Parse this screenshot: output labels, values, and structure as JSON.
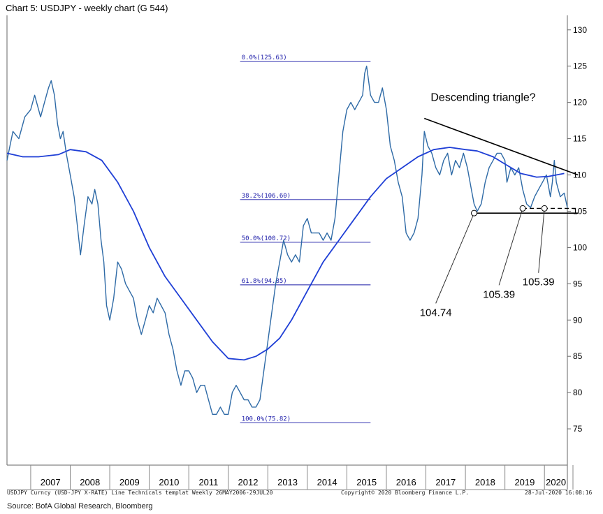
{
  "header": {
    "title": "Chart 5: USDJPY - weekly chart (G 544)"
  },
  "footer": {
    "left": "USDJPY Curncy (USD-JPY X-RATE) Line Technicals templat  Weekly 26MAY2006-29JUL20",
    "center": "Copyright© 2020 Bloomberg Finance L.P.",
    "right": "28-Jul-2020 16:08:16"
  },
  "source": "Source: BofA Global Research, Bloomberg",
  "chart_data": {
    "type": "line",
    "title": "Chart 5: USDJPY - weekly chart (G 544)",
    "x_range": [
      2006.4,
      2020.58
    ],
    "ylim": [
      70,
      132
    ],
    "y_ticks": [
      75,
      80,
      85,
      90,
      95,
      100,
      105,
      110,
      115,
      120,
      125,
      130
    ],
    "x_tick_labels": [
      "2007",
      "2008",
      "2009",
      "2010",
      "2011",
      "2012",
      "2013",
      "2014",
      "2015",
      "2016",
      "2017",
      "2018",
      "2019",
      "2020"
    ],
    "colors": {
      "price": "#2e6aa6",
      "moving_average": "#1f3fd6",
      "fib": "#1a1aa8",
      "annotation": "#000000"
    },
    "series": [
      {
        "kind": "price",
        "x": [
          2006.4,
          2006.55,
          2006.7,
          2006.85,
          2007.0,
          2007.1,
          2007.25,
          2007.35,
          2007.45,
          2007.52,
          2007.6,
          2007.68,
          2007.75,
          2007.82,
          2007.9,
          2008.0,
          2008.1,
          2008.18,
          2008.26,
          2008.35,
          2008.45,
          2008.55,
          2008.62,
          2008.7,
          2008.78,
          2008.85,
          2008.92,
          2009.0,
          2009.1,
          2009.2,
          2009.3,
          2009.4,
          2009.5,
          2009.6,
          2009.7,
          2009.8,
          2009.9,
          2010.0,
          2010.1,
          2010.2,
          2010.3,
          2010.4,
          2010.5,
          2010.6,
          2010.7,
          2010.8,
          2010.9,
          2011.0,
          2011.1,
          2011.2,
          2011.3,
          2011.4,
          2011.5,
          2011.6,
          2011.7,
          2011.8,
          2011.9,
          2012.0,
          2012.1,
          2012.2,
          2012.3,
          2012.4,
          2012.5,
          2012.6,
          2012.7,
          2012.8,
          2012.9,
          2013.0,
          2013.1,
          2013.2,
          2013.3,
          2013.4,
          2013.5,
          2013.6,
          2013.7,
          2013.8,
          2013.9,
          2014.0,
          2014.1,
          2014.2,
          2014.3,
          2014.4,
          2014.5,
          2014.6,
          2014.7,
          2014.8,
          2014.9,
          2015.0,
          2015.1,
          2015.2,
          2015.3,
          2015.4,
          2015.45,
          2015.5,
          2015.6,
          2015.7,
          2015.8,
          2015.9,
          2016.0,
          2016.1,
          2016.2,
          2016.3,
          2016.4,
          2016.5,
          2016.6,
          2016.7,
          2016.8,
          2016.9,
          2016.96,
          2017.05,
          2017.15,
          2017.25,
          2017.35,
          2017.45,
          2017.55,
          2017.65,
          2017.75,
          2017.85,
          2017.95,
          2018.05,
          2018.15,
          2018.22,
          2018.3,
          2018.4,
          2018.5,
          2018.6,
          2018.7,
          2018.8,
          2018.9,
          2019.0,
          2019.05,
          2019.15,
          2019.25,
          2019.35,
          2019.45,
          2019.55,
          2019.65,
          2019.75,
          2019.85,
          2019.95,
          2020.05,
          2020.15,
          2020.2,
          2020.25,
          2020.3,
          2020.4,
          2020.5,
          2020.58
        ],
        "y": [
          112,
          116,
          115,
          118,
          119,
          121,
          118,
          120,
          122,
          123,
          121,
          117,
          115,
          116,
          113,
          110,
          107,
          103,
          99,
          103,
          107,
          106,
          108,
          106,
          101,
          98,
          92,
          90,
          93,
          98,
          97,
          95,
          94,
          93,
          90,
          88,
          90,
          92,
          91,
          93,
          92,
          91,
          88,
          86,
          83,
          81,
          83,
          83,
          82,
          80,
          81,
          81,
          79,
          77,
          77,
          78,
          77,
          77,
          80,
          81,
          80,
          79,
          79,
          78,
          78,
          79,
          83,
          87,
          91,
          95,
          98,
          101,
          99,
          98,
          99,
          98,
          103,
          104,
          102,
          102,
          102,
          101,
          102,
          101,
          104,
          110,
          116,
          119,
          120,
          119,
          120,
          121,
          124,
          125,
          121,
          120,
          120,
          122,
          119,
          114,
          112,
          109,
          107,
          102,
          101,
          102,
          104,
          110,
          116,
          114,
          113,
          111,
          110,
          112,
          113,
          110,
          112,
          111,
          113,
          111,
          108,
          106,
          105,
          106,
          109,
          111,
          112,
          113,
          113,
          112,
          109,
          111,
          110,
          111,
          108,
          106,
          105.5,
          107,
          108,
          109,
          110,
          107,
          109,
          112,
          109,
          107,
          107.5,
          105.5
        ],
        "name": ""
      },
      {
        "kind": "moving_average",
        "x": [
          2006.4,
          2006.8,
          2007.2,
          2007.7,
          2008.0,
          2008.4,
          2008.8,
          2009.2,
          2009.6,
          2010.0,
          2010.4,
          2010.8,
          2011.2,
          2011.6,
          2012.0,
          2012.4,
          2012.7,
          2013.0,
          2013.3,
          2013.6,
          2014.0,
          2014.4,
          2014.8,
          2015.2,
          2015.6,
          2016.0,
          2016.4,
          2016.8,
          2017.2,
          2017.6,
          2018.0,
          2018.3,
          2018.7,
          2019.0,
          2019.4,
          2019.8,
          2020.1,
          2020.3,
          2020.5
        ],
        "y": [
          113,
          112.5,
          112.5,
          112.8,
          113.5,
          113.2,
          112,
          109,
          105,
          100,
          96,
          93,
          90,
          87,
          84.7,
          84.5,
          85,
          86,
          87.5,
          90,
          94,
          98,
          101,
          104,
          107,
          109.5,
          111,
          112.5,
          113.5,
          113.8,
          113.5,
          113.3,
          112.5,
          111.5,
          110.2,
          109.7,
          109.8,
          110,
          110.2
        ],
        "name": ""
      }
    ],
    "fibonacci_levels": [
      {
        "label": "0.0%(125.63)",
        "value": 125.63
      },
      {
        "label": "38.2%(106.60)",
        "value": 106.6
      },
      {
        "label": "50.0%(100.72)",
        "value": 100.72
      },
      {
        "label": "61.8%(94.85)",
        "value": 94.85
      },
      {
        "label": "100.0%(75.82)",
        "value": 75.82
      }
    ],
    "fib_x_range": [
      2012.3,
      2015.6
    ],
    "triangle_upper": {
      "x": [
        2016.96,
        2020.85
      ],
      "y": [
        117.8,
        110.0
      ]
    },
    "triangle_lower": {
      "x": [
        2018.22,
        2020.85
      ],
      "y": [
        104.74,
        104.74
      ]
    },
    "dashed_line": {
      "x": [
        2019.45,
        2020.85
      ],
      "y": [
        105.39,
        105.39
      ]
    },
    "markers": [
      {
        "x": 2018.22,
        "y": 104.74,
        "label": "104.74",
        "label_x": 2017.25,
        "label_y": 92.3
      },
      {
        "x": 2019.45,
        "y": 105.39,
        "label": "105.39",
        "label_x": 2018.85,
        "label_y": 94.8
      },
      {
        "x": 2020.0,
        "y": 105.39,
        "label": "105.39",
        "label_x": 2019.85,
        "label_y": 96.5
      }
    ],
    "annotation": {
      "text": "Descending triangle?",
      "x": 2018.45,
      "y": 120.2
    }
  }
}
